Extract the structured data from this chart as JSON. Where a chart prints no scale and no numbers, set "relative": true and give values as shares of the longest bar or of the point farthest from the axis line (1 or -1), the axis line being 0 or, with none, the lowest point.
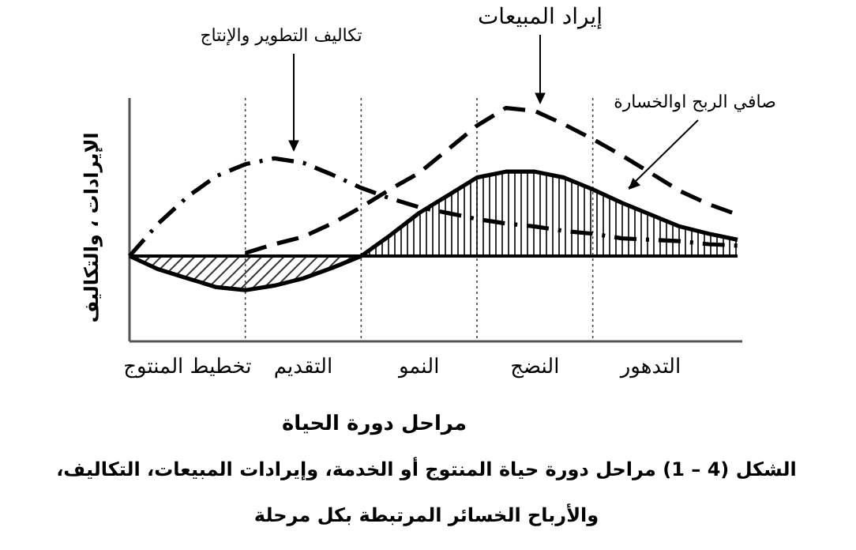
{
  "chart_data": {
    "type": "line",
    "relative": true,
    "legend": false,
    "grid": "x",
    "xlabel": "مراحل دورة الحياة",
    "ylabel": "الإيرادات ، والتكاليف",
    "categories": [
      null,
      null,
      "تخطيط المنتوج",
      null,
      null,
      null,
      "التقديم",
      null,
      null,
      null,
      "النمو",
      null,
      null,
      null,
      "النضج",
      null,
      null,
      null,
      "التدهور",
      null,
      null,
      null
    ],
    "series": [
      {
        "name": "تكاليف التطوير والإنتاج",
        "color": "#000000",
        "line_style": "dashdot",
        "values": [
          0,
          0.22,
          0.4,
          0.54,
          0.62,
          0.66,
          0.63,
          0.55,
          0.46,
          0.39,
          0.33,
          0.29,
          0.25,
          0.22,
          0.2,
          0.17,
          0.15,
          0.12,
          0.11,
          0.1,
          0.08,
          0.07
        ]
      },
      {
        "name": "إيراد المبيعات",
        "color": "#000000",
        "line_style": "dashed",
        "values": [
          null,
          null,
          null,
          null,
          0.02,
          0.08,
          0.13,
          0.22,
          0.33,
          0.45,
          0.56,
          0.72,
          0.88,
          1,
          0.98,
          0.89,
          0.79,
          0.68,
          0.56,
          0.44,
          0.35,
          0.28
        ]
      },
      {
        "name": "صافي الربح اوالخسارة",
        "color": "#000000",
        "type": "area",
        "line_style": "solid",
        "values": [
          0,
          -0.09,
          -0.15,
          -0.21,
          -0.23,
          -0.2,
          -0.15,
          -0.08,
          0,
          0.14,
          0.29,
          0.41,
          0.53,
          0.57,
          0.57,
          0.53,
          0.45,
          0.36,
          0.28,
          0.2,
          0.15,
          0.11
        ]
      }
    ],
    "annotations": [
      "الشكل (4 – 1) مراحل دورة حياة المنتوج أو الخدمة، وإيرادات المبيعات، التكاليف، والأرباح الخسائر المرتبطة بكل مرحلة"
    ]
  }
}
